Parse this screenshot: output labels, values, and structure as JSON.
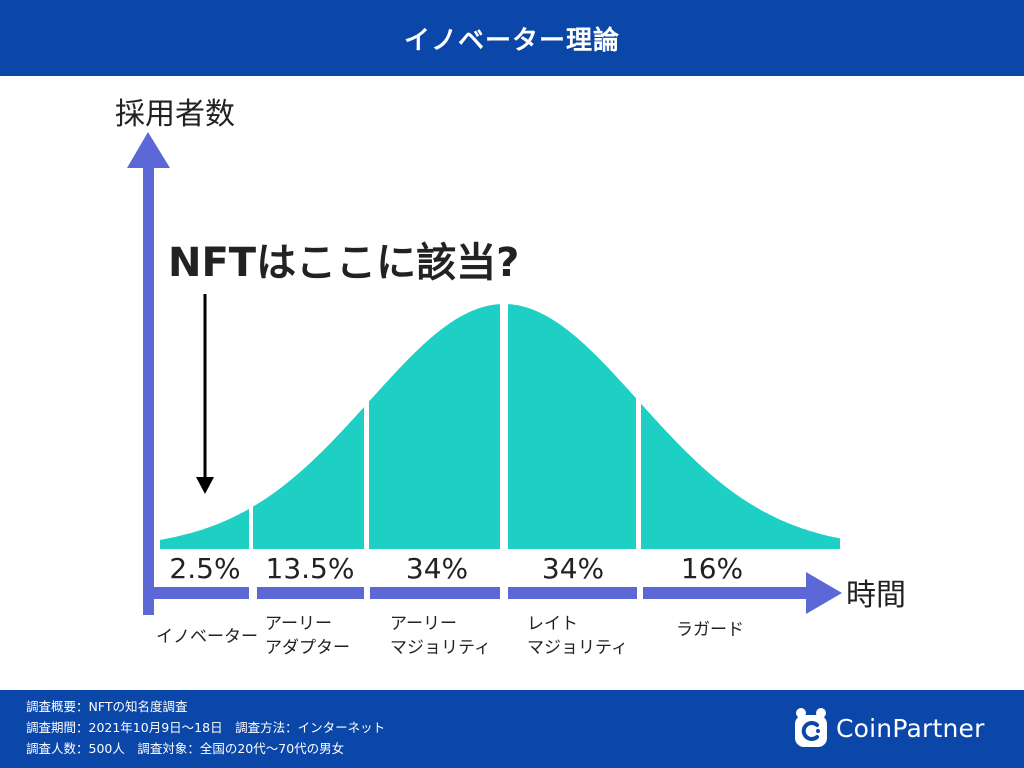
{
  "header": {
    "title": "イノベーター理論"
  },
  "diagram": {
    "y_axis_label": "採用者数",
    "x_axis_label": "時間",
    "callout": "NFTはここに該当?",
    "segments": [
      {
        "percent": "2.5%",
        "label_lines": [
          "イノベーター"
        ]
      },
      {
        "percent": "13.5%",
        "label_lines": [
          "アーリー",
          "アダプター"
        ]
      },
      {
        "percent": "34%",
        "label_lines": [
          "アーリー",
          "マジョリティ"
        ]
      },
      {
        "percent": "34%",
        "label_lines": [
          "レイト",
          "マジョリティ"
        ]
      },
      {
        "percent": "16%",
        "label_lines": [
          "ラガード"
        ]
      }
    ],
    "colors": {
      "curve": "#1ecfc3",
      "axis": "#5b68d6",
      "text": "#222222"
    }
  },
  "footer": {
    "survey_lines": [
      "調査概要：NFTの知名度調査",
      "調査期間：2021年10月9日〜18日　調査方法：インターネット",
      "調査人数：500人　調査対象：全国の20代〜70代の男女"
    ],
    "brand": "CoinPartner",
    "brand_icon": "coinpartner-logo-icon"
  }
}
